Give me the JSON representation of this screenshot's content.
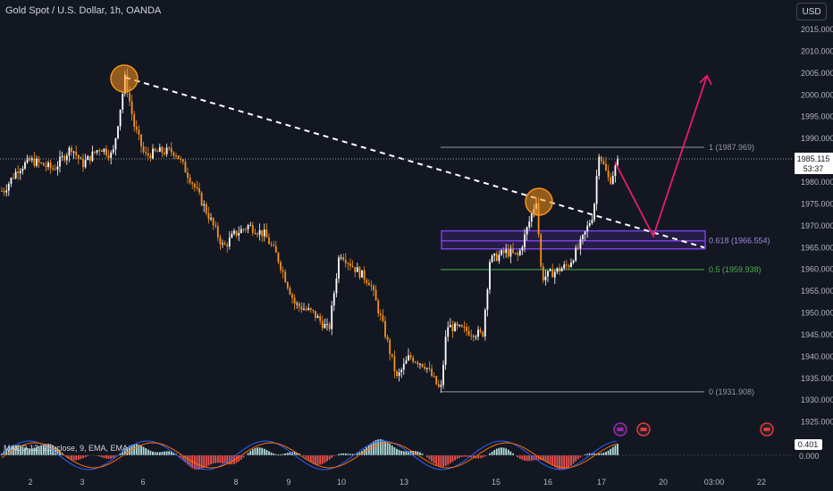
{
  "header": {
    "title": "Gold Spot / U.S. Dollar, 1h, OANDA",
    "currency_button": "USD"
  },
  "price_box": {
    "value": "1985.115",
    "countdown": "53:37"
  },
  "macd": {
    "label": "MACD 12, 26, close, 9, EMA, EMA",
    "value_box": "0.401",
    "zero_label": "0.000"
  },
  "colors": {
    "background": "#131722",
    "bull_candle": "#ffffff",
    "bear_candle": "#f7931a",
    "trendline": "#ffffff",
    "fib_line": "#9598a1",
    "fib_green": "#4caf50",
    "zone_purple": "#7b3fe4",
    "arrow": "#e91e63",
    "highlight_circle": "#f7931a",
    "macd_hist_pos": "#b2dfdb",
    "macd_hist_neg": "#ef5350"
  },
  "chart_data": {
    "type": "candlestick",
    "title": "Gold Spot / U.S. Dollar, 1h, OANDA",
    "y_axis": {
      "ticks": [
        "2015.000",
        "2010.000",
        "2005.000",
        "2000.000",
        "1995.000",
        "1990.000",
        "1985.000",
        "1980.000",
        "1975.000",
        "1970.000",
        "1965.000",
        "1960.000",
        "1955.000",
        "1950.000",
        "1945.000",
        "1940.000",
        "1935.000",
        "1930.000",
        "1925.000"
      ],
      "range": [
        1922,
        2018
      ],
      "last_price": 1985.115
    },
    "x_axis": {
      "ticks": [
        "2",
        "3",
        "6",
        "8",
        "9",
        "10",
        "13",
        "15",
        "16",
        "17",
        "20",
        "03:00",
        "22"
      ]
    },
    "price_path_keypoints": [
      {
        "day": "2",
        "price": 1978
      },
      {
        "day": "3",
        "price": 1985
      },
      {
        "day": "6",
        "price": 2004
      },
      {
        "day": "6",
        "price": 1986
      },
      {
        "day": "8",
        "price": 1966
      },
      {
        "day": "8",
        "price": 1968
      },
      {
        "day": "9",
        "price": 1951
      },
      {
        "day": "10",
        "price": 1963
      },
      {
        "day": "13",
        "price": 1934
      },
      {
        "day": "13",
        "price": 1932
      },
      {
        "day": "13",
        "price": 1946
      },
      {
        "day": "15",
        "price": 1962
      },
      {
        "day": "16",
        "price": 1976
      },
      {
        "day": "16",
        "price": 1958
      },
      {
        "day": "17",
        "price": 1987
      },
      {
        "day": "17",
        "price": 1985.1
      }
    ],
    "fibonacci": [
      {
        "level": "1",
        "label": "1 (1987.969)",
        "price": 1987.969
      },
      {
        "level": "0.618",
        "label": "0.618 (1966.554)",
        "price": 1966.554
      },
      {
        "level": "0.5",
        "label": "0.5 (1959.938)",
        "price": 1959.938
      },
      {
        "level": "0",
        "label": "0 (1931.908)",
        "price": 1931.908
      }
    ],
    "zone": {
      "price_low": 1965.3,
      "price_high": 1968.2
    },
    "trendline": {
      "start_price": 2004,
      "end_price": 1965
    },
    "projection_path": [
      {
        "price": 1984.6
      },
      {
        "price": 1967.6
      },
      {
        "price": 2004.4
      }
    ],
    "grid": false
  }
}
